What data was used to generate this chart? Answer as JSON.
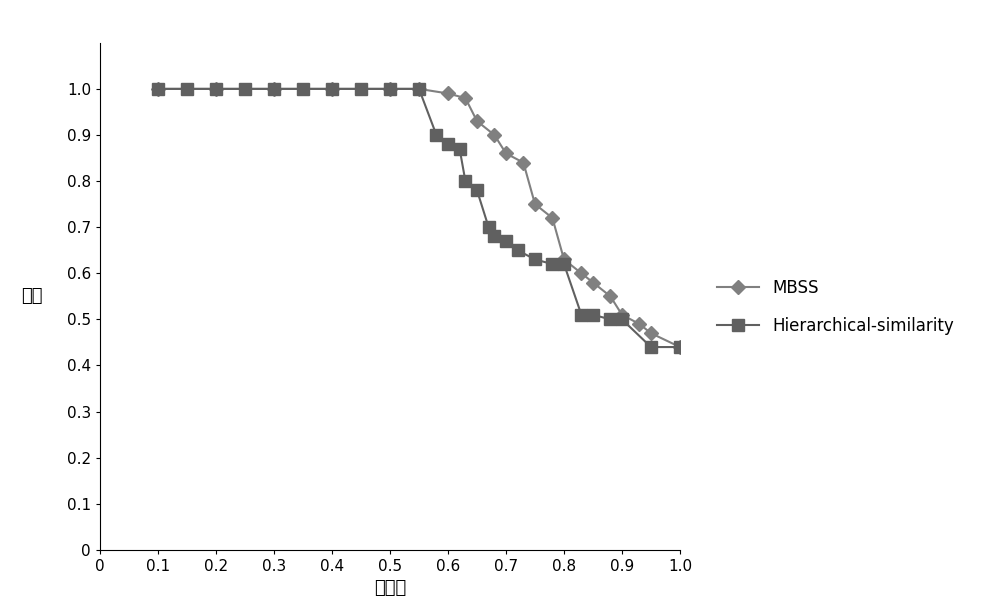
{
  "mbss_x": [
    0.1,
    0.2,
    0.3,
    0.4,
    0.5,
    0.55,
    0.6,
    0.63,
    0.65,
    0.68,
    0.7,
    0.73,
    0.75,
    0.78,
    0.8,
    0.83,
    0.85,
    0.88,
    0.9,
    0.93,
    0.95,
    1.0
  ],
  "mbss_y": [
    1.0,
    1.0,
    1.0,
    1.0,
    1.0,
    1.0,
    0.99,
    0.98,
    0.93,
    0.9,
    0.86,
    0.84,
    0.75,
    0.72,
    0.63,
    0.6,
    0.58,
    0.55,
    0.51,
    0.49,
    0.47,
    0.44
  ],
  "hier_x": [
    0.1,
    0.15,
    0.2,
    0.25,
    0.3,
    0.35,
    0.4,
    0.45,
    0.5,
    0.55,
    0.58,
    0.6,
    0.62,
    0.63,
    0.65,
    0.67,
    0.68,
    0.7,
    0.72,
    0.75,
    0.78,
    0.8,
    0.83,
    0.85,
    0.88,
    0.9,
    0.95,
    1.0
  ],
  "hier_y": [
    1.0,
    1.0,
    1.0,
    1.0,
    1.0,
    1.0,
    1.0,
    1.0,
    1.0,
    1.0,
    0.9,
    0.88,
    0.87,
    0.8,
    0.78,
    0.7,
    0.68,
    0.67,
    0.65,
    0.63,
    0.62,
    0.62,
    0.51,
    0.51,
    0.5,
    0.5,
    0.44,
    0.44
  ],
  "color_mbss": "#808080",
  "color_hier": "#606060",
  "marker_mbss": "D",
  "marker_hier": "s",
  "xlabel": "召回率",
  "ylabel": "精度",
  "xlim": [
    0,
    1.0
  ],
  "ylim": [
    0,
    1.1
  ],
  "xticks": [
    0,
    0.1,
    0.2,
    0.3,
    0.4,
    0.5,
    0.6,
    0.7,
    0.8,
    0.9,
    1.0
  ],
  "yticks": [
    0,
    0.1,
    0.2,
    0.3,
    0.4,
    0.5,
    0.6,
    0.7,
    0.8,
    0.9,
    1.0
  ],
  "legend_mbss": "MBSS",
  "legend_hier": "Hierarchical-similarity",
  "figsize": [
    10.0,
    6.11
  ],
  "dpi": 100
}
